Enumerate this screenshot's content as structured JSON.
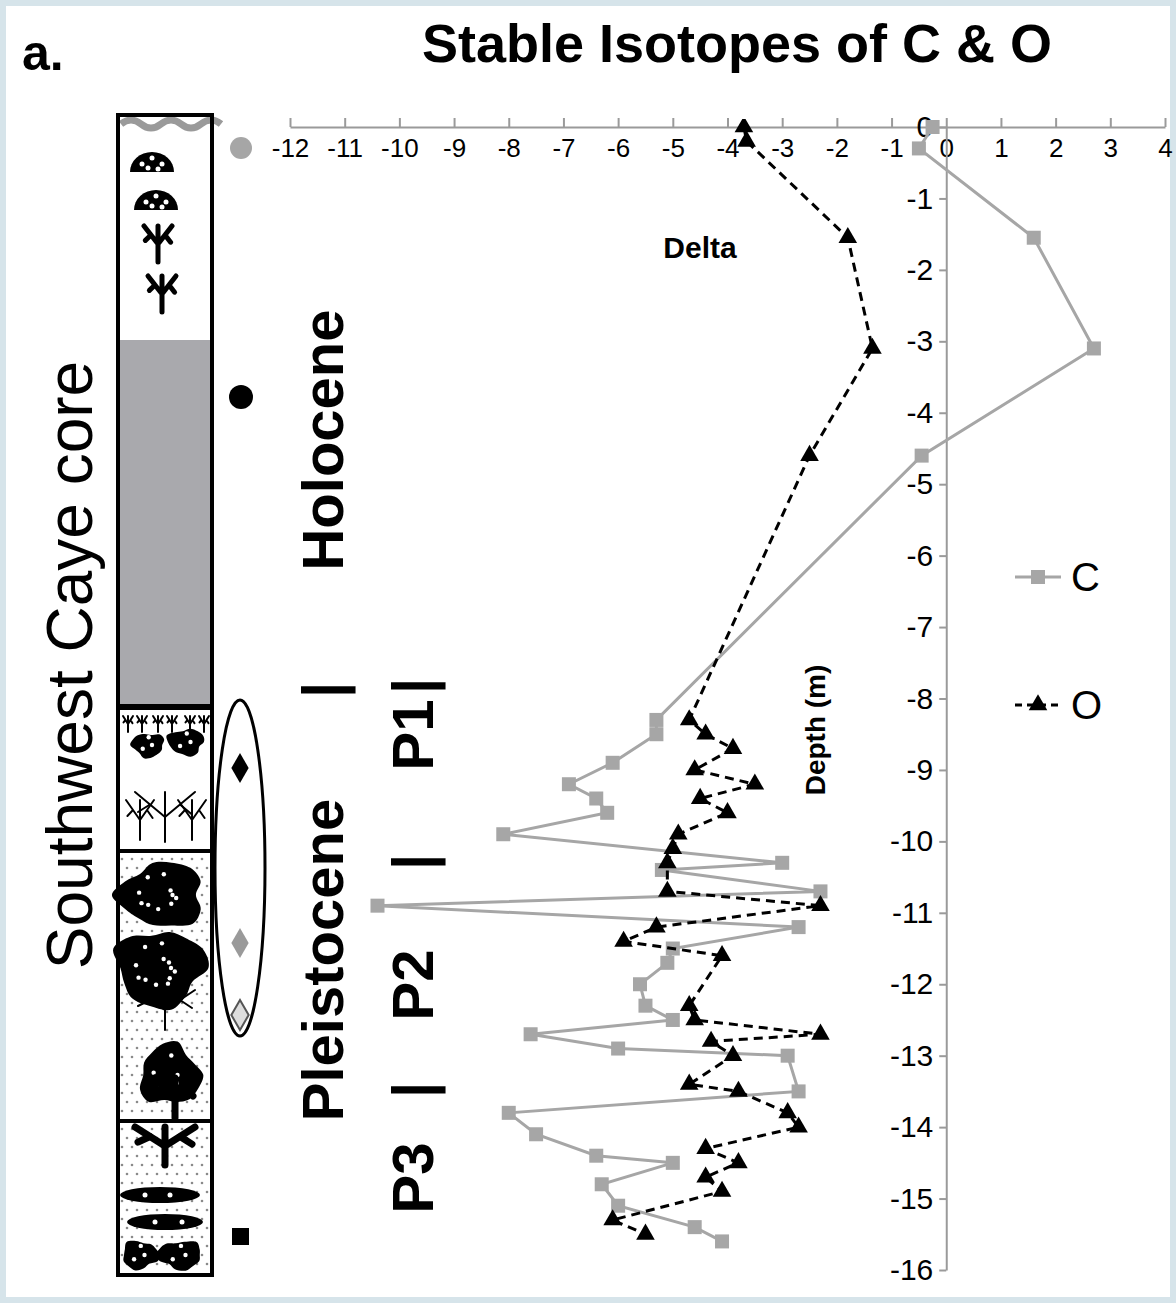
{
  "chart_data": {
    "type": "line",
    "panel_label": "a.",
    "title": "Stable Isotopes of C & O",
    "x_label": "Delta",
    "y_label": "Depth (m)",
    "xlim": [
      -12,
      4
    ],
    "xticks": [
      -12,
      -11,
      -10,
      -9,
      -8,
      -7,
      -6,
      -5,
      -4,
      -3,
      -2,
      -1,
      0,
      1,
      2,
      3,
      4
    ],
    "ylim": [
      -16,
      0
    ],
    "yticks": [
      0,
      -1,
      -2,
      -3,
      -4,
      -5,
      -6,
      -7,
      -8,
      -9,
      -10,
      -11,
      -12,
      -13,
      -14,
      -15,
      -16
    ],
    "legend": "right",
    "series": [
      {
        "name": "C",
        "color": "#a6a6a6",
        "marker": "square",
        "line_style": "solid",
        "x": [
          -0.25,
          -0.5,
          1.6,
          2.7,
          -0.45,
          -5.3,
          -5.3,
          -6.1,
          -6.9,
          -6.4,
          -6.2,
          -8.1,
          -3.0,
          -5.2,
          -2.3,
          -10.4,
          -2.7,
          -5.0,
          -5.1,
          -5.6,
          -5.5,
          -5.0,
          -7.6,
          -6.0,
          -2.9,
          -2.7,
          -8.0,
          -7.5,
          -6.4,
          -5.0,
          -6.3,
          -6.0,
          -4.6,
          -4.1
        ],
        "values": [
          0,
          -0.3,
          -1.55,
          -3.1,
          -4.6,
          -8.3,
          -8.5,
          -8.9,
          -9.2,
          -9.4,
          -9.6,
          -9.9,
          -10.3,
          -10.4,
          -10.7,
          -10.9,
          -11.2,
          -11.5,
          -11.7,
          -12.0,
          -12.3,
          -12.5,
          -12.7,
          -12.9,
          -13.0,
          -13.5,
          -13.8,
          -14.1,
          -14.4,
          -14.5,
          -14.8,
          -15.1,
          -15.4,
          -15.6
        ]
      },
      {
        "name": "O",
        "color": "#000000",
        "marker": "triangle",
        "line_style": "dashed",
        "x": [
          -3.7,
          -3.65,
          -1.8,
          -1.35,
          -2.5,
          -4.7,
          -4.4,
          -3.9,
          -4.6,
          -3.5,
          -4.5,
          -4.0,
          -4.9,
          -5.0,
          -5.1,
          -5.1,
          -2.3,
          -5.3,
          -5.9,
          -4.1,
          -4.7,
          -4.6,
          -2.3,
          -4.3,
          -3.9,
          -4.7,
          -3.8,
          -2.9,
          -2.7,
          -4.4,
          -3.8,
          -4.4,
          -4.1,
          -6.1,
          -5.5
        ],
        "values": [
          0,
          -0.2,
          -1.55,
          -3.1,
          -4.6,
          -8.3,
          -8.5,
          -8.7,
          -9.0,
          -9.2,
          -9.4,
          -9.6,
          -9.9,
          -10.1,
          -10.3,
          -10.7,
          -10.9,
          -11.2,
          -11.4,
          -11.6,
          -12.3,
          -12.5,
          -12.7,
          -12.8,
          -13.0,
          -13.4,
          -13.5,
          -13.8,
          -14.0,
          -14.3,
          -14.5,
          -14.7,
          -14.9,
          -15.3,
          -15.5
        ]
      }
    ],
    "annotations": {
      "core_label": "Southwest Caye core",
      "epochs": [
        "Pleistocene",
        "|",
        "Holocene"
      ],
      "units": [
        "P3",
        "|",
        "P2",
        "|",
        "P1",
        "|"
      ]
    }
  }
}
